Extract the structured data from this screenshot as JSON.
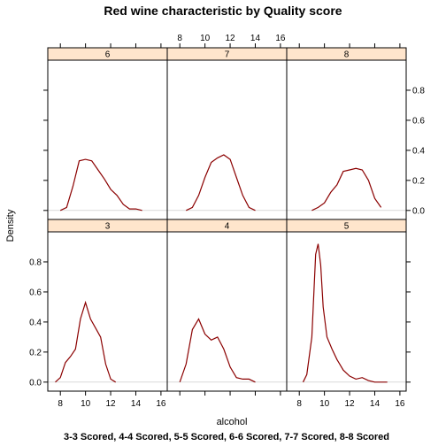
{
  "chart_data": {
    "type": "line",
    "title": "Red wine characteristic by Quality score",
    "xlabel": "alcohol",
    "ylabel": "Density",
    "caption": "3-3 Scored, 4-4 Scored, 5-5 Scored, 6-6 Scored, 7-7 Scored, 8-8 Scored",
    "xlim": [
      7.0,
      16.5
    ],
    "ylim": [
      -0.06,
      1.0
    ],
    "x_ticks": [
      8,
      10,
      12,
      14,
      16
    ],
    "y_ticks": [
      0.0,
      0.2,
      0.4,
      0.6,
      0.8
    ],
    "y_tick_labels": [
      "0.0",
      "0.2",
      "0.4",
      "0.6",
      "0.8"
    ],
    "grid": false,
    "reference_line_y": 0,
    "line_color": "#8b0000",
    "strip_color": "#ffe5cc",
    "reference_color": "#d9d9d9",
    "panels": [
      {
        "name": "3",
        "x": [
          7.6,
          8.0,
          8.4,
          8.8,
          9.2,
          9.6,
          10.0,
          10.4,
          10.8,
          11.2,
          11.6,
          12.0,
          12.4
        ],
        "y": [
          0.0,
          0.03,
          0.13,
          0.17,
          0.22,
          0.42,
          0.53,
          0.42,
          0.36,
          0.3,
          0.12,
          0.02,
          0.0
        ]
      },
      {
        "name": "4",
        "x": [
          8.0,
          8.5,
          9.0,
          9.5,
          10.0,
          10.5,
          11.0,
          11.5,
          12.0,
          12.5,
          13.0,
          13.5,
          14.0
        ],
        "y": [
          0.0,
          0.12,
          0.35,
          0.42,
          0.32,
          0.28,
          0.3,
          0.22,
          0.1,
          0.03,
          0.02,
          0.02,
          0.0
        ]
      },
      {
        "name": "5",
        "x": [
          8.3,
          8.6,
          9.0,
          9.3,
          9.5,
          9.7,
          9.9,
          10.2,
          10.6,
          11.0,
          11.5,
          12.0,
          12.5,
          13.0,
          13.5,
          14.0,
          15.0
        ],
        "y": [
          0.0,
          0.05,
          0.3,
          0.85,
          0.92,
          0.78,
          0.5,
          0.3,
          0.22,
          0.15,
          0.08,
          0.04,
          0.02,
          0.03,
          0.01,
          0.0,
          0.0
        ]
      },
      {
        "name": "6",
        "x": [
          8.0,
          8.5,
          9.0,
          9.5,
          10.0,
          10.5,
          11.0,
          11.5,
          12.0,
          12.5,
          13.0,
          13.5,
          14.0,
          14.5
        ],
        "y": [
          0.0,
          0.02,
          0.16,
          0.33,
          0.34,
          0.33,
          0.27,
          0.21,
          0.14,
          0.1,
          0.04,
          0.01,
          0.01,
          0.0
        ]
      },
      {
        "name": "7",
        "x": [
          8.5,
          9.0,
          9.5,
          10.0,
          10.5,
          11.0,
          11.5,
          12.0,
          12.5,
          13.0,
          13.5,
          14.0
        ],
        "y": [
          0.0,
          0.02,
          0.1,
          0.22,
          0.32,
          0.35,
          0.37,
          0.34,
          0.22,
          0.1,
          0.02,
          0.0
        ]
      },
      {
        "name": "8",
        "x": [
          9.0,
          9.5,
          10.0,
          10.5,
          11.0,
          11.5,
          12.0,
          12.5,
          13.0,
          13.5,
          14.0,
          14.5
        ],
        "y": [
          0.0,
          0.02,
          0.05,
          0.12,
          0.17,
          0.26,
          0.27,
          0.28,
          0.27,
          0.2,
          0.08,
          0.02
        ]
      }
    ]
  }
}
